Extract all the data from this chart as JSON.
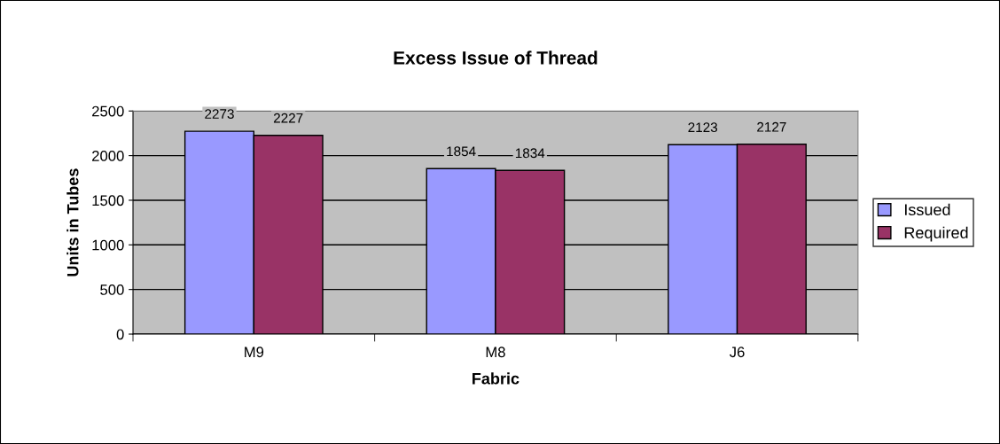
{
  "chart_data": {
    "type": "bar",
    "title": "Excess Issue of Thread",
    "xlabel": "Fabric",
    "ylabel": "Units in Tubes",
    "categories": [
      "M9",
      "M8",
      "J6"
    ],
    "series": [
      {
        "name": "Issued",
        "color": "#9999ff",
        "values": [
          2273,
          1854,
          2123
        ]
      },
      {
        "name": "Required",
        "color": "#993366",
        "values": [
          2227,
          1834,
          2127
        ]
      }
    ],
    "ylim": [
      0,
      2500
    ],
    "yticks": [
      0,
      500,
      1000,
      1500,
      2000,
      2500
    ],
    "grid": "y",
    "legend": "right",
    "data_labels": true
  }
}
